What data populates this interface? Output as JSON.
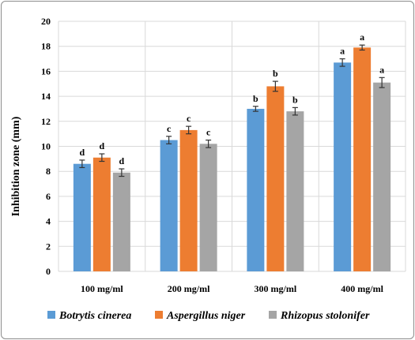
{
  "chart_data": {
    "type": "bar",
    "title": "",
    "xlabel": "",
    "ylabel": "Inhibition  zone (mm)",
    "ylim": [
      0,
      20
    ],
    "yticks": [
      0,
      2,
      4,
      6,
      8,
      10,
      12,
      14,
      16,
      18,
      20
    ],
    "grid": true,
    "legend_position": "bottom",
    "categories": [
      "100 mg/ml",
      "200 mg/ml",
      "300 mg/ml",
      "400 mg/ml"
    ],
    "series": [
      {
        "name": "Botrytis cinerea",
        "color": "#5b9bd5",
        "values": [
          8.6,
          10.5,
          13.0,
          16.7
        ],
        "errors": [
          0.3,
          0.3,
          0.2,
          0.3
        ],
        "labels": [
          "d",
          "c",
          "b",
          "a"
        ]
      },
      {
        "name": "Aspergillus niger",
        "color": "#ed7d31",
        "values": [
          9.1,
          11.3,
          14.8,
          17.9
        ],
        "errors": [
          0.3,
          0.3,
          0.4,
          0.2
        ],
        "labels": [
          "d",
          "c",
          "b",
          "a"
        ]
      },
      {
        "name": "Rhizopus stolonifer",
        "color": "#a5a5a5",
        "values": [
          7.9,
          10.2,
          12.8,
          15.1
        ],
        "errors": [
          0.3,
          0.3,
          0.3,
          0.4
        ],
        "labels": [
          "d",
          "c",
          "b",
          "a"
        ]
      }
    ]
  }
}
